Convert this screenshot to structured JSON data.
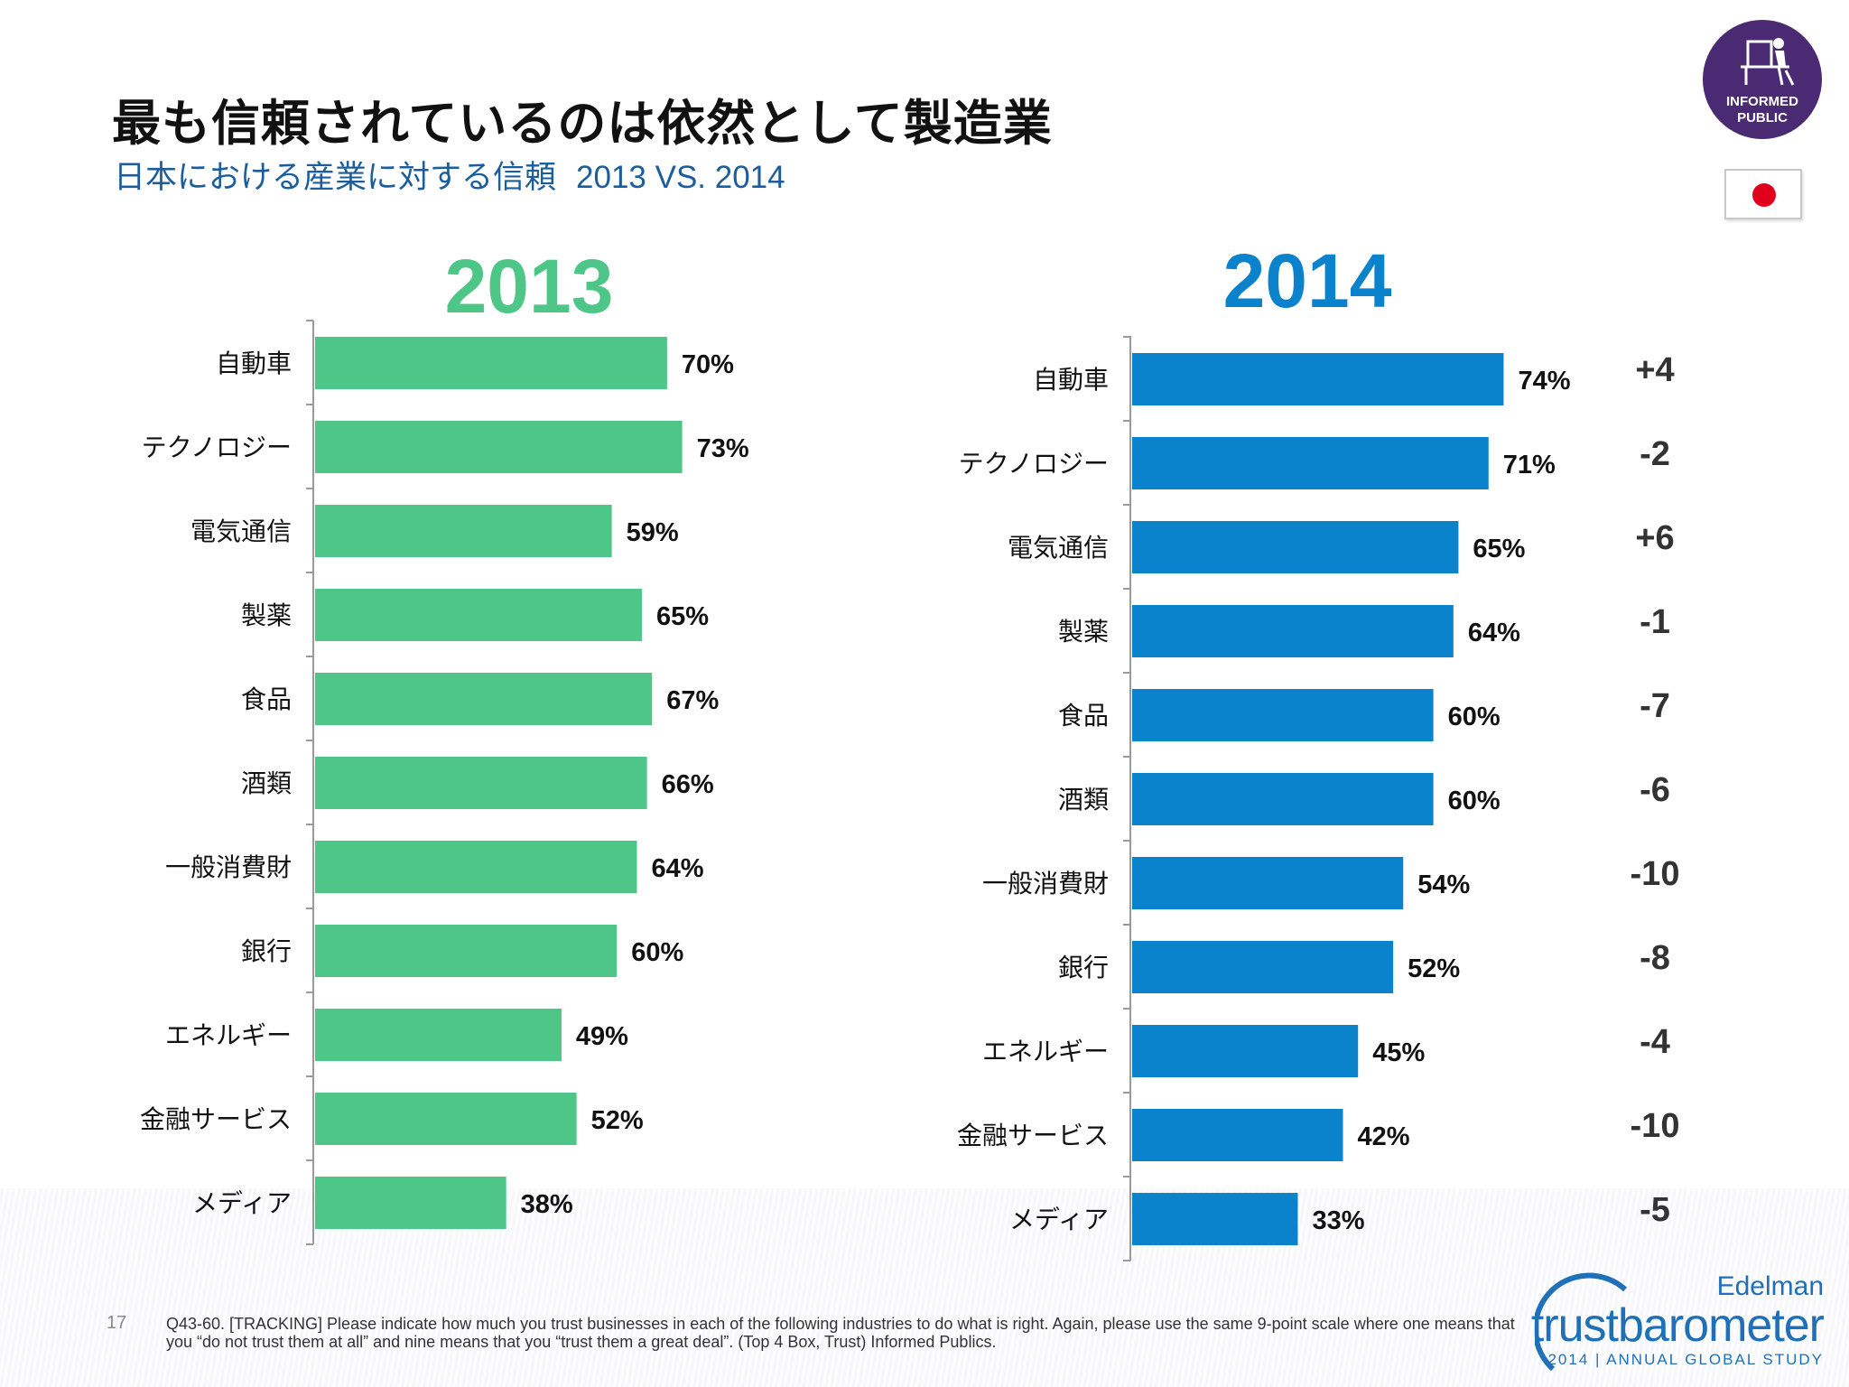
{
  "title": "最も信頼されているのは依然として製造業",
  "subtitle": "日本における産業に対する信頼",
  "subtitle_years": "2013 VS. 2014",
  "badge": {
    "icon": "person-at-desk-icon",
    "line1": "INFORMED",
    "line2": "PUBLIC"
  },
  "flag": {
    "icon": "japan-flag-icon"
  },
  "page_number": "17",
  "footnote": "Q43-60. [TRACKING] Please indicate how much you trust businesses in each of the following industries to do what is right.  Again, please use the same 9-point scale where one means that you “do not trust them at all” and nine means that you “trust them a great deal”. (Top 4 Box, Trust) Informed Publics.",
  "logo": {
    "brand": "Edelman",
    "product_light": "trust",
    "product_bold": "barometer",
    "tagline": "2014 | ANNUAL GLOBAL STUDY"
  },
  "colors": {
    "green": "#4ec687",
    "blue": "#0a82cc",
    "title_blue": "#1c5d9c",
    "badge_purple": "#4a2a72"
  },
  "chart_data": [
    {
      "type": "bar",
      "orientation": "horizontal",
      "title": "2013",
      "color": "#4ec687",
      "categories": [
        "自動車",
        "テクノロジー",
        "電気通信",
        "製薬",
        "食品",
        "酒類",
        "一般消費財",
        "銀行",
        "エネルギー",
        "金融サービス",
        "メディア"
      ],
      "values": [
        70,
        73,
        59,
        65,
        67,
        66,
        64,
        60,
        49,
        52,
        38
      ],
      "labels": [
        "70%",
        "73%",
        "59%",
        "65%",
        "67%",
        "66%",
        "64%",
        "60%",
        "49%",
        "52%",
        "38%"
      ]
    },
    {
      "type": "bar",
      "orientation": "horizontal",
      "title": "2014",
      "color": "#0a82cc",
      "categories": [
        "自動車",
        "テクノロジー",
        "電気通信",
        "製薬",
        "食品",
        "酒類",
        "一般消費財",
        "銀行",
        "エネルギー",
        "金融サービス",
        "メディア"
      ],
      "values": [
        74,
        71,
        65,
        64,
        60,
        60,
        54,
        52,
        45,
        42,
        33
      ],
      "labels": [
        "74%",
        "71%",
        "65%",
        "64%",
        "60%",
        "60%",
        "54%",
        "52%",
        "45%",
        "42%",
        "33%"
      ],
      "change_labels": [
        "+4",
        "-2",
        "+6",
        "-1",
        "-7",
        "-6",
        "-10",
        "-8",
        "-4",
        "-10",
        "-5"
      ]
    }
  ]
}
